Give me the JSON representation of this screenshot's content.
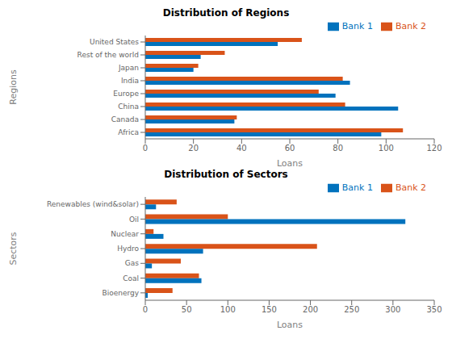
{
  "chart_data": [
    {
      "type": "bar",
      "orientation": "horizontal",
      "title": "Distribution of Regions",
      "x_label": "Loans",
      "y_label": "Regions",
      "categories": [
        "Africa",
        "Canada",
        "China",
        "Europe",
        "India",
        "Japan",
        "Rest of the world",
        "United States"
      ],
      "series": [
        {
          "name": "Bank 2",
          "color": "#D95319",
          "values": [
            107,
            38,
            83,
            72,
            82,
            22,
            33,
            65
          ]
        },
        {
          "name": "Bank 1",
          "color": "#0072BD",
          "values": [
            98,
            37,
            105,
            79,
            85,
            20,
            23,
            55
          ]
        }
      ],
      "xlim": [
        0,
        120
      ],
      "xticks": [
        0,
        20,
        40,
        60,
        80,
        100,
        120
      ],
      "legend": "upper right",
      "grid": false
    },
    {
      "type": "bar",
      "orientation": "horizontal",
      "title": "Distribution of Sectors",
      "x_label": "Loans",
      "y_label": "Sectors",
      "categories": [
        "Bioenergy",
        "Coal",
        "Gas",
        "Hydro",
        "Nuclear",
        "Oil",
        "Renewables (wind&solar)"
      ],
      "series": [
        {
          "name": "Bank 2",
          "color": "#D95319",
          "values": [
            33,
            65,
            43,
            208,
            10,
            100,
            38
          ]
        },
        {
          "name": "Bank 1",
          "color": "#0072BD",
          "values": [
            3,
            68,
            8,
            70,
            22,
            315,
            13
          ]
        }
      ],
      "xlim": [
        0,
        350
      ],
      "xticks": [
        0,
        50,
        100,
        150,
        200,
        250,
        300,
        350
      ],
      "legend": "upper right",
      "grid": false
    }
  ]
}
